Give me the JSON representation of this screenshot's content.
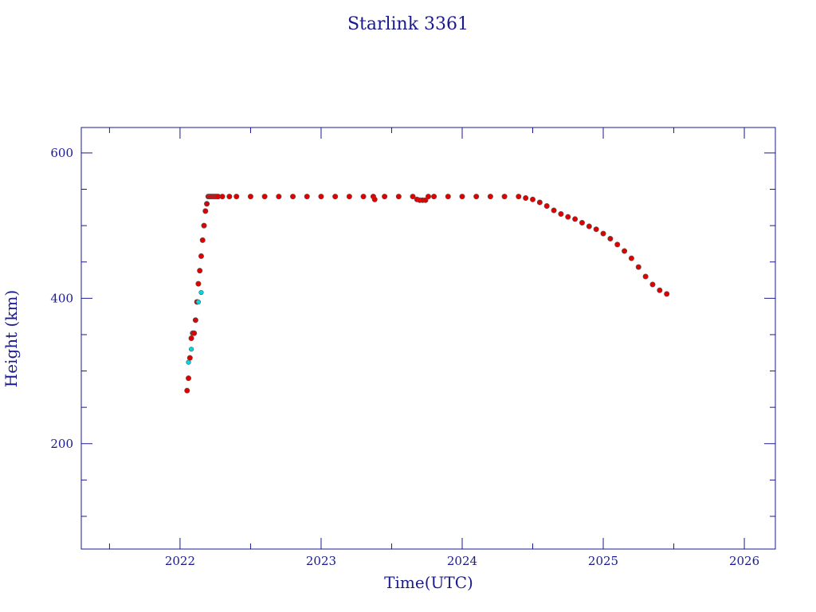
{
  "chart_data": {
    "type": "scatter",
    "title": "Starlink 3361",
    "xlabel": "Time(UTC)",
    "ylabel": "Height (km)",
    "xlim": [
      2021.3,
      2026.22
    ],
    "ylim": [
      55,
      635
    ],
    "x_ticks": [
      2022,
      2023,
      2024,
      2025,
      2026
    ],
    "x_tick_labels": [
      "2022",
      "2023",
      "2024",
      "2025",
      "2026"
    ],
    "y_ticks": [
      200,
      400,
      600
    ],
    "y_tick_labels": [
      "200",
      "400",
      "600"
    ],
    "grid": false,
    "legend": "none",
    "colors": {
      "axis": "#1a1a8c",
      "primary": "#e00000",
      "secondary": "#00d8e8",
      "outline": "#555555"
    },
    "series": [
      {
        "color": "#e00000",
        "x": [
          2022.05,
          2022.06,
          2022.07,
          2022.08,
          2022.09,
          2022.1,
          2022.11,
          2022.12,
          2022.13,
          2022.14,
          2022.15,
          2022.16,
          2022.17,
          2022.18,
          2022.19,
          2022.2,
          2022.21,
          2022.22,
          2022.23,
          2022.24,
          2022.25,
          2022.26,
          2022.27,
          2022.3,
          2022.35,
          2022.4,
          2022.5,
          2022.6,
          2022.7,
          2022.8,
          2022.9,
          2023.0,
          2023.1,
          2023.2,
          2023.3,
          2023.37,
          2023.38,
          2023.45,
          2023.55,
          2023.65,
          2023.68,
          2023.7,
          2023.72,
          2023.74,
          2023.76,
          2023.8,
          2023.9,
          2024.0,
          2024.1,
          2024.2,
          2024.3,
          2024.4,
          2024.45,
          2024.5,
          2024.55,
          2024.6,
          2024.65,
          2024.7,
          2024.75,
          2024.8,
          2024.85,
          2024.9,
          2024.95,
          2025.0,
          2025.05,
          2025.1,
          2025.15,
          2025.2,
          2025.25,
          2025.3,
          2025.35,
          2025.4,
          2025.45
        ],
        "y": [
          273,
          290,
          318,
          345,
          352,
          352,
          370,
          395,
          420,
          438,
          458,
          480,
          500,
          520,
          530,
          540,
          540,
          540,
          540,
          540,
          540,
          540,
          540,
          540,
          540,
          540,
          540,
          540,
          540,
          540,
          540,
          540,
          540,
          540,
          540,
          540,
          536,
          540,
          540,
          540,
          536,
          535,
          535,
          535,
          540,
          540,
          540,
          540,
          540,
          540,
          540,
          540,
          538,
          536,
          532,
          527,
          521,
          516,
          512,
          509,
          504,
          499,
          495,
          489,
          482,
          474,
          465,
          455,
          443,
          430,
          419,
          411,
          406
        ]
      },
      {
        "color": "#00d8e8",
        "x": [
          2022.06,
          2022.08,
          2022.13,
          2022.15
        ],
        "y": [
          312,
          330,
          395,
          408
        ]
      }
    ]
  }
}
